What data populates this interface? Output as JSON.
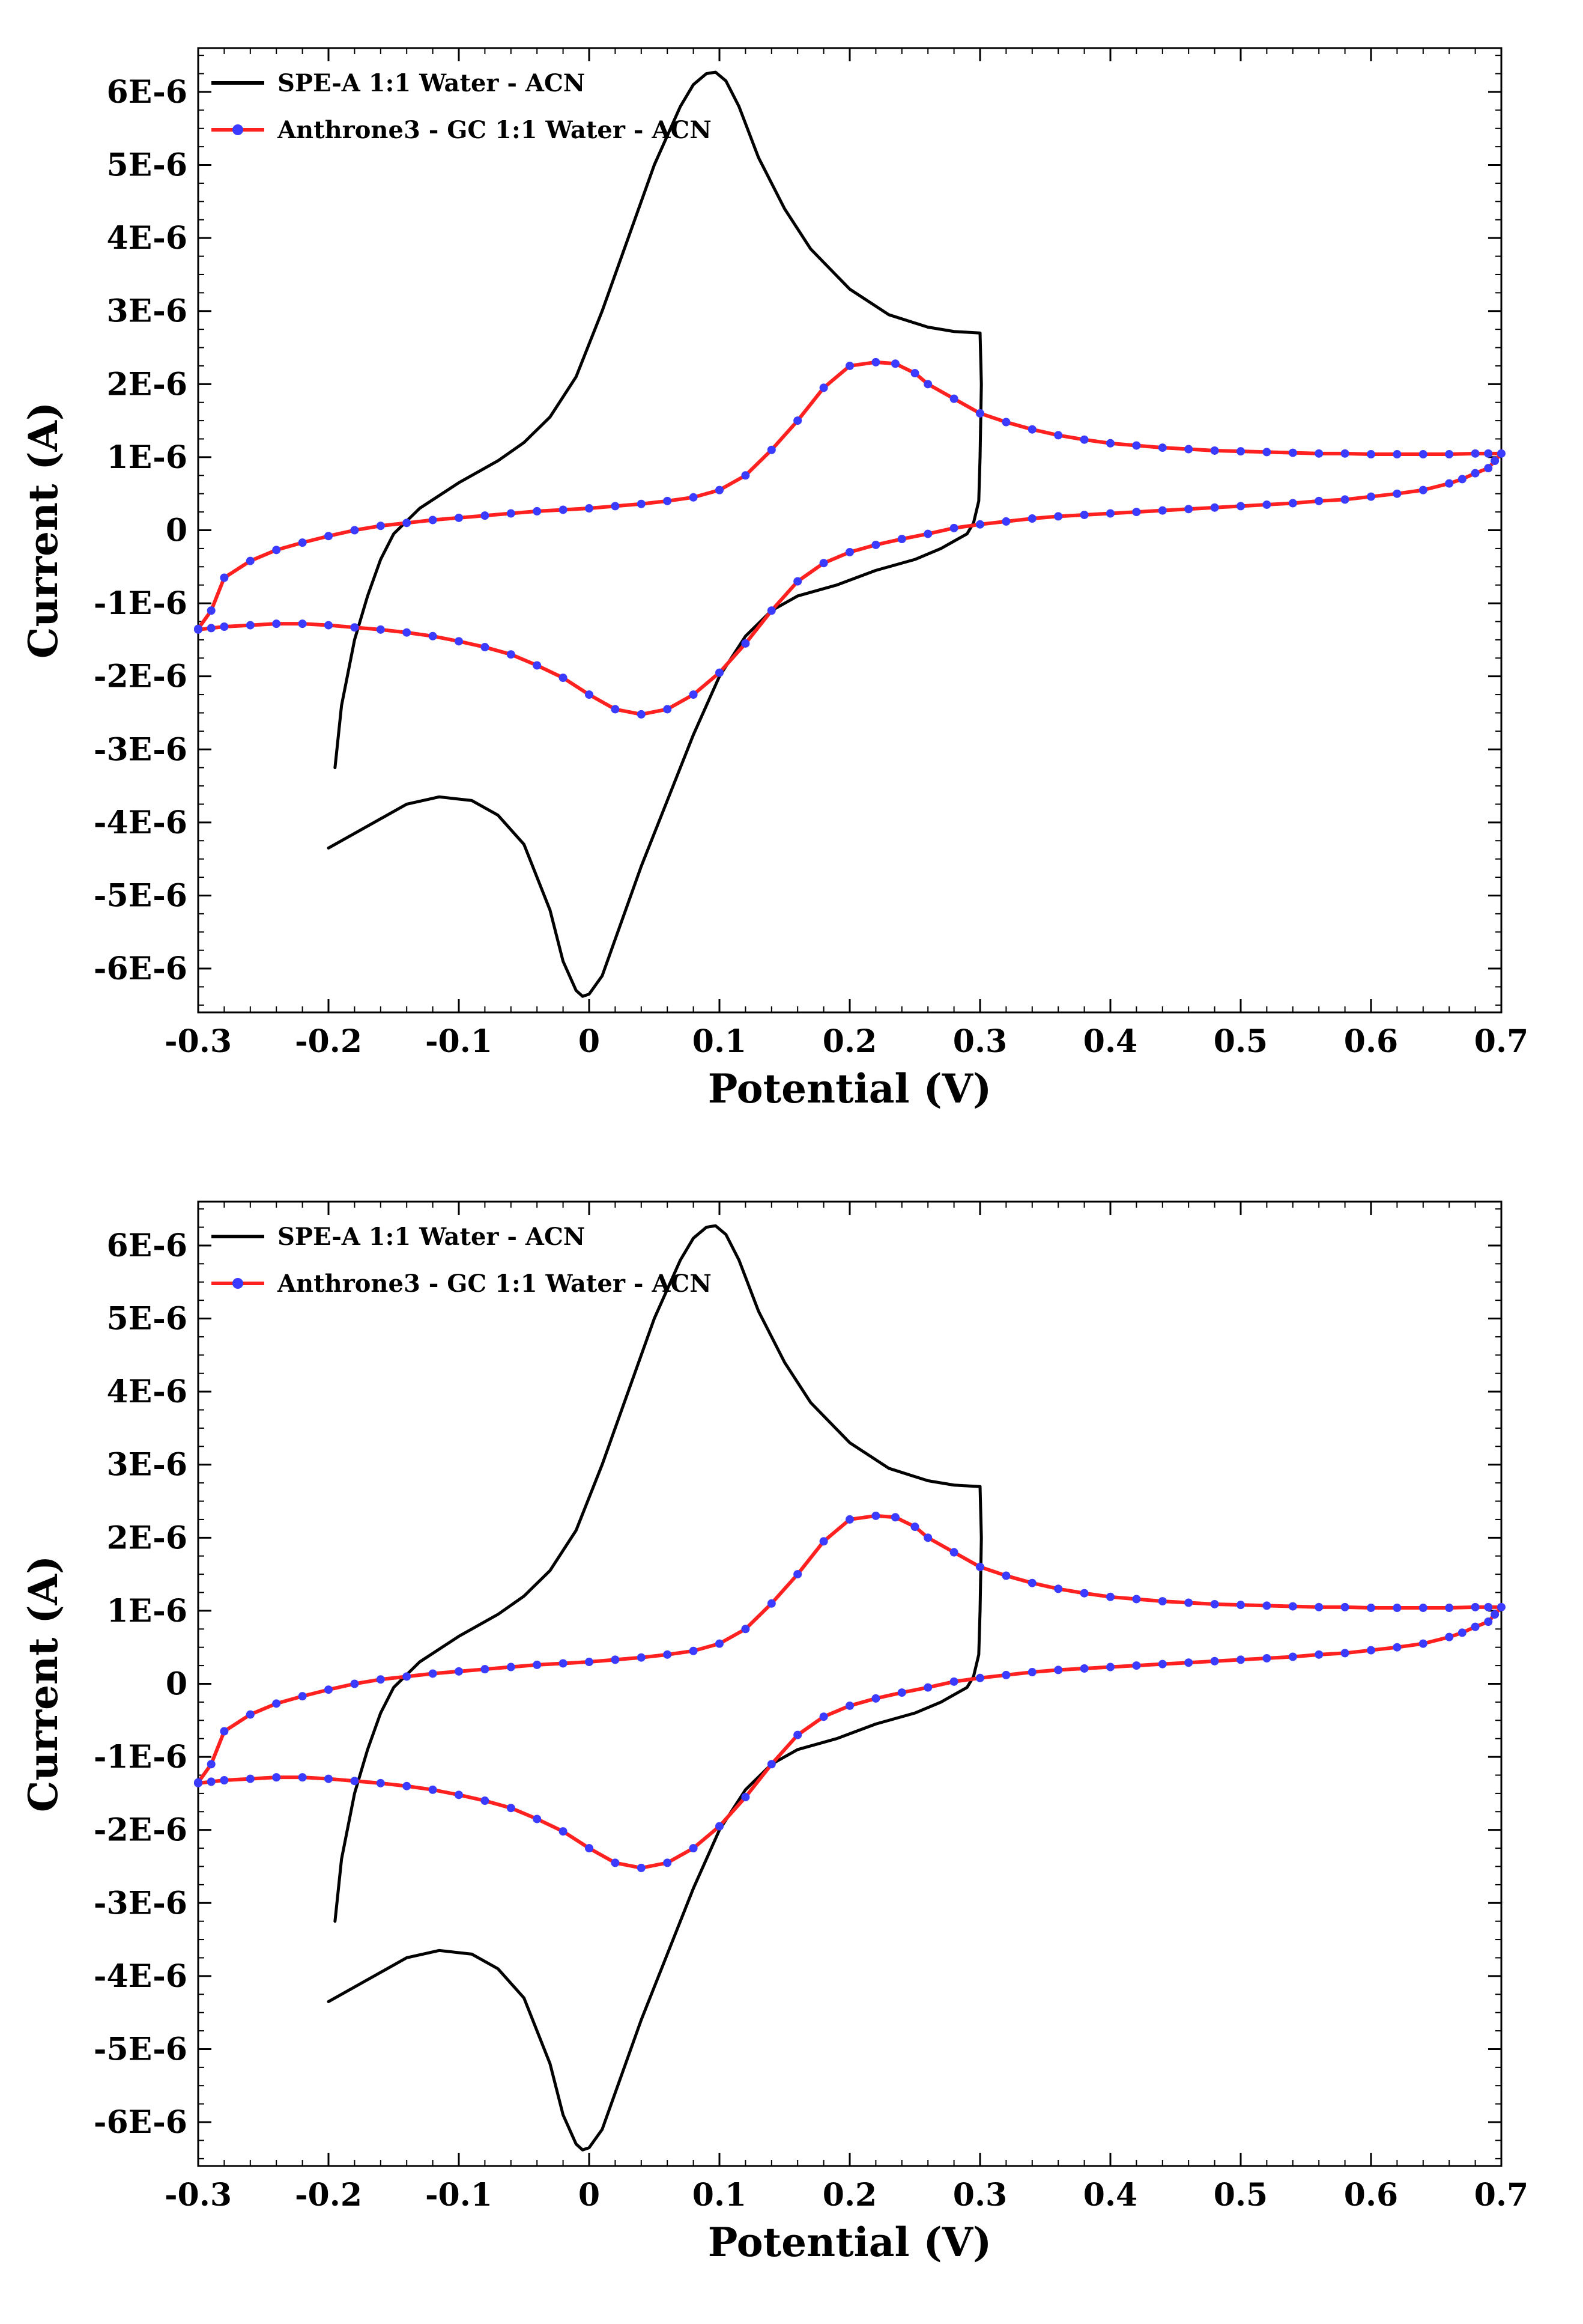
{
  "chart_data": [
    {
      "type": "line",
      "xlabel": "Potential (V)",
      "ylabel": "Current (A)",
      "xlim": [
        -0.3,
        0.7
      ],
      "ylim": [
        -6.6e-06,
        6.6e-06
      ],
      "x_ticks": [
        "-0.3",
        "-0.2",
        "-0.1",
        "0",
        "0.1",
        "0.2",
        "0.3",
        "0.4",
        "0.5",
        "0.6",
        "0.7"
      ],
      "y_ticks": [
        "6E-6",
        "5E-6",
        "4E-6",
        "3E-6",
        "2E-6",
        "1E-6",
        "0",
        "-1E-6",
        "-2E-6",
        "-3E-6",
        "-4E-6",
        "-5E-6",
        "-6E-6"
      ],
      "grid": false,
      "legend_position": "top-left",
      "series": [
        {
          "name": "SPE-A 1:1 Water - ACN",
          "color": "#000000",
          "marker": "none",
          "x": [
            -0.195,
            -0.19,
            -0.18,
            -0.17,
            -0.16,
            -0.15,
            -0.13,
            -0.1,
            -0.07,
            -0.05,
            -0.03,
            -0.01,
            0.01,
            0.03,
            0.05,
            0.07,
            0.08,
            0.09,
            0.097,
            0.105,
            0.115,
            0.13,
            0.15,
            0.17,
            0.2,
            0.23,
            0.26,
            0.28,
            0.3,
            0.301,
            0.3,
            0.299,
            0.295,
            0.29,
            0.28,
            0.27,
            0.25,
            0.22,
            0.19,
            0.16,
            0.14,
            0.12,
            0.1,
            0.08,
            0.06,
            0.04,
            0.02,
            0.01,
            0.0,
            -0.005,
            -0.01,
            -0.02,
            -0.03,
            -0.05,
            -0.07,
            -0.09,
            -0.115,
            -0.14,
            -0.17,
            -0.2
          ],
          "y": [
            -3.25e-06,
            -2.4e-06,
            -1.5e-06,
            -9e-07,
            -4e-07,
            -5e-08,
            3e-07,
            6.5e-07,
            9.5e-07,
            1.2e-06,
            1.55e-06,
            2.1e-06,
            3e-06,
            4e-06,
            5e-06,
            5.8e-06,
            6.1e-06,
            6.25e-06,
            6.27e-06,
            6.15e-06,
            5.8e-06,
            5.1e-06,
            4.4e-06,
            3.85e-06,
            3.3e-06,
            2.95e-06,
            2.78e-06,
            2.72e-06,
            2.7e-06,
            2e-06,
            1e-06,
            4e-07,
            1e-07,
            -5e-08,
            -1.5e-07,
            -2.5e-07,
            -4e-07,
            -5.5e-07,
            -7.5e-07,
            -9e-07,
            -1.1e-06,
            -1.45e-06,
            -2e-06,
            -2.8e-06,
            -3.7e-06,
            -4.6e-06,
            -5.6e-06,
            -6.1e-06,
            -6.35e-06,
            -6.38e-06,
            -6.3e-06,
            -5.9e-06,
            -5.2e-06,
            -4.3e-06,
            -3.9e-06,
            -3.7e-06,
            -3.65e-06,
            -3.75e-06,
            -4.05e-06,
            -4.35e-06
          ]
        },
        {
          "name": "Anthrone3 - GC 1:1 Water - ACN",
          "color": "#ff2020",
          "marker": "circle",
          "marker_color": "#3b3bff",
          "x": [
            -0.3,
            -0.29,
            -0.28,
            -0.26,
            -0.24,
            -0.22,
            -0.2,
            -0.18,
            -0.16,
            -0.14,
            -0.12,
            -0.1,
            -0.08,
            -0.06,
            -0.04,
            -0.02,
            0.0,
            0.02,
            0.04,
            0.06,
            0.08,
            0.1,
            0.12,
            0.14,
            0.16,
            0.18,
            0.2,
            0.22,
            0.235,
            0.25,
            0.26,
            0.28,
            0.3,
            0.32,
            0.34,
            0.36,
            0.38,
            0.4,
            0.42,
            0.44,
            0.46,
            0.48,
            0.5,
            0.52,
            0.54,
            0.56,
            0.58,
            0.6,
            0.62,
            0.64,
            0.66,
            0.68,
            0.69,
            0.7,
            0.695,
            0.69,
            0.68,
            0.67,
            0.66,
            0.64,
            0.62,
            0.6,
            0.58,
            0.56,
            0.54,
            0.52,
            0.5,
            0.48,
            0.46,
            0.44,
            0.42,
            0.4,
            0.38,
            0.36,
            0.34,
            0.32,
            0.3,
            0.28,
            0.26,
            0.24,
            0.22,
            0.2,
            0.18,
            0.16,
            0.14,
            0.12,
            0.1,
            0.08,
            0.06,
            0.04,
            0.02,
            0.0,
            -0.02,
            -0.04,
            -0.06,
            -0.08,
            -0.1,
            -0.12,
            -0.14,
            -0.16,
            -0.18,
            -0.2,
            -0.22,
            -0.24,
            -0.26,
            -0.28,
            -0.29,
            -0.3
          ],
          "y": [
            -1.35e-06,
            -1.1e-06,
            -6.5e-07,
            -4.2e-07,
            -2.7e-07,
            -1.7e-07,
            -8e-08,
            0.0,
            6e-08,
            1e-07,
            1.4e-07,
            1.7e-07,
            2e-07,
            2.3e-07,
            2.6e-07,
            2.8e-07,
            3e-07,
            3.3e-07,
            3.6e-07,
            4e-07,
            4.5e-07,
            5.5e-07,
            7.5e-07,
            1.1e-06,
            1.5e-06,
            1.95e-06,
            2.25e-06,
            2.3e-06,
            2.28e-06,
            2.15e-06,
            2e-06,
            1.8e-06,
            1.6e-06,
            1.48e-06,
            1.38e-06,
            1.3e-06,
            1.24e-06,
            1.19e-06,
            1.16e-06,
            1.13e-06,
            1.11e-06,
            1.09e-06,
            1.08e-06,
            1.07e-06,
            1.06e-06,
            1.05e-06,
            1.05e-06,
            1.04e-06,
            1.04e-06,
            1.04e-06,
            1.04e-06,
            1.05e-06,
            1.05e-06,
            1.05e-06,
            9.5e-07,
            8.5e-07,
            7.8e-07,
            7e-07,
            6.4e-07,
            5.5e-07,
            5e-07,
            4.6e-07,
            4.2e-07,
            4e-07,
            3.7e-07,
            3.5e-07,
            3.3e-07,
            3.1e-07,
            2.9e-07,
            2.7e-07,
            2.5e-07,
            2.3e-07,
            2.1e-07,
            1.9e-07,
            1.6e-07,
            1.2e-07,
            8e-08,
            3e-08,
            -5e-08,
            -1.2e-07,
            -2e-07,
            -3e-07,
            -4.5e-07,
            -7e-07,
            -1.1e-06,
            -1.55e-06,
            -1.95e-06,
            -2.25e-06,
            -2.45e-06,
            -2.52e-06,
            -2.45e-06,
            -2.25e-06,
            -2.02e-06,
            -1.85e-06,
            -1.7e-06,
            -1.6e-06,
            -1.52e-06,
            -1.45e-06,
            -1.4e-06,
            -1.36e-06,
            -1.33e-06,
            -1.3e-06,
            -1.28e-06,
            -1.28e-06,
            -1.3e-06,
            -1.32e-06,
            -1.34e-06,
            -1.36e-06
          ]
        }
      ]
    },
    {
      "type": "line",
      "xlabel": "Potential (V)",
      "ylabel": "Current (A)",
      "xlim": [
        -0.3,
        0.7
      ],
      "ylim": [
        -6.6e-06,
        6.6e-06
      ],
      "x_ticks": [
        "-0.3",
        "-0.2",
        "-0.1",
        "0",
        "0.1",
        "0.2",
        "0.3",
        "0.4",
        "0.5",
        "0.6",
        "0.7"
      ],
      "y_ticks": [
        "6E-6",
        "5E-6",
        "4E-6",
        "3E-6",
        "2E-6",
        "1E-6",
        "0",
        "-1E-6",
        "-2E-6",
        "-3E-6",
        "-4E-6",
        "-5E-6",
        "-6E-6"
      ],
      "grid": false,
      "legend_position": "top-left",
      "series": [
        {
          "name": "SPE-A 1:1 Water - ACN",
          "color": "#000000",
          "marker": "none",
          "x": [
            -0.195,
            -0.19,
            -0.18,
            -0.17,
            -0.16,
            -0.15,
            -0.13,
            -0.1,
            -0.07,
            -0.05,
            -0.03,
            -0.01,
            0.01,
            0.03,
            0.05,
            0.07,
            0.08,
            0.09,
            0.097,
            0.105,
            0.115,
            0.13,
            0.15,
            0.17,
            0.2,
            0.23,
            0.26,
            0.28,
            0.3,
            0.301,
            0.3,
            0.299,
            0.295,
            0.29,
            0.28,
            0.27,
            0.25,
            0.22,
            0.19,
            0.16,
            0.14,
            0.12,
            0.1,
            0.08,
            0.06,
            0.04,
            0.02,
            0.01,
            0.0,
            -0.005,
            -0.01,
            -0.02,
            -0.03,
            -0.05,
            -0.07,
            -0.09,
            -0.115,
            -0.14,
            -0.17,
            -0.2
          ],
          "y": [
            -3.25e-06,
            -2.4e-06,
            -1.5e-06,
            -9e-07,
            -4e-07,
            -5e-08,
            3e-07,
            6.5e-07,
            9.5e-07,
            1.2e-06,
            1.55e-06,
            2.1e-06,
            3e-06,
            4e-06,
            5e-06,
            5.8e-06,
            6.1e-06,
            6.25e-06,
            6.27e-06,
            6.15e-06,
            5.8e-06,
            5.1e-06,
            4.4e-06,
            3.85e-06,
            3.3e-06,
            2.95e-06,
            2.78e-06,
            2.72e-06,
            2.7e-06,
            2e-06,
            1e-06,
            4e-07,
            1e-07,
            -5e-08,
            -1.5e-07,
            -2.5e-07,
            -4e-07,
            -5.5e-07,
            -7.5e-07,
            -9e-07,
            -1.1e-06,
            -1.45e-06,
            -2e-06,
            -2.8e-06,
            -3.7e-06,
            -4.6e-06,
            -5.6e-06,
            -6.1e-06,
            -6.35e-06,
            -6.38e-06,
            -6.3e-06,
            -5.9e-06,
            -5.2e-06,
            -4.3e-06,
            -3.9e-06,
            -3.7e-06,
            -3.65e-06,
            -3.75e-06,
            -4.05e-06,
            -4.35e-06
          ]
        },
        {
          "name": "Anthrone3 - GC 1:1 Water - ACN",
          "color": "#ff2020",
          "marker": "circle",
          "marker_color": "#3b3bff",
          "x": [
            -0.3,
            -0.29,
            -0.28,
            -0.26,
            -0.24,
            -0.22,
            -0.2,
            -0.18,
            -0.16,
            -0.14,
            -0.12,
            -0.1,
            -0.08,
            -0.06,
            -0.04,
            -0.02,
            0.0,
            0.02,
            0.04,
            0.06,
            0.08,
            0.1,
            0.12,
            0.14,
            0.16,
            0.18,
            0.2,
            0.22,
            0.235,
            0.25,
            0.26,
            0.28,
            0.3,
            0.32,
            0.34,
            0.36,
            0.38,
            0.4,
            0.42,
            0.44,
            0.46,
            0.48,
            0.5,
            0.52,
            0.54,
            0.56,
            0.58,
            0.6,
            0.62,
            0.64,
            0.66,
            0.68,
            0.69,
            0.7,
            0.695,
            0.69,
            0.68,
            0.67,
            0.66,
            0.64,
            0.62,
            0.6,
            0.58,
            0.56,
            0.54,
            0.52,
            0.5,
            0.48,
            0.46,
            0.44,
            0.42,
            0.4,
            0.38,
            0.36,
            0.34,
            0.32,
            0.3,
            0.28,
            0.26,
            0.24,
            0.22,
            0.2,
            0.18,
            0.16,
            0.14,
            0.12,
            0.1,
            0.08,
            0.06,
            0.04,
            0.02,
            0.0,
            -0.02,
            -0.04,
            -0.06,
            -0.08,
            -0.1,
            -0.12,
            -0.14,
            -0.16,
            -0.18,
            -0.2,
            -0.22,
            -0.24,
            -0.26,
            -0.28,
            -0.29,
            -0.3
          ],
          "y": [
            -1.35e-06,
            -1.1e-06,
            -6.5e-07,
            -4.2e-07,
            -2.7e-07,
            -1.7e-07,
            -8e-08,
            0.0,
            6e-08,
            1e-07,
            1.4e-07,
            1.7e-07,
            2e-07,
            2.3e-07,
            2.6e-07,
            2.8e-07,
            3e-07,
            3.3e-07,
            3.6e-07,
            4e-07,
            4.5e-07,
            5.5e-07,
            7.5e-07,
            1.1e-06,
            1.5e-06,
            1.95e-06,
            2.25e-06,
            2.3e-06,
            2.28e-06,
            2.15e-06,
            2e-06,
            1.8e-06,
            1.6e-06,
            1.48e-06,
            1.38e-06,
            1.3e-06,
            1.24e-06,
            1.19e-06,
            1.16e-06,
            1.13e-06,
            1.11e-06,
            1.09e-06,
            1.08e-06,
            1.07e-06,
            1.06e-06,
            1.05e-06,
            1.05e-06,
            1.04e-06,
            1.04e-06,
            1.04e-06,
            1.04e-06,
            1.05e-06,
            1.05e-06,
            1.05e-06,
            9.5e-07,
            8.5e-07,
            7.8e-07,
            7e-07,
            6.4e-07,
            5.5e-07,
            5e-07,
            4.6e-07,
            4.2e-07,
            4e-07,
            3.7e-07,
            3.5e-07,
            3.3e-07,
            3.1e-07,
            2.9e-07,
            2.7e-07,
            2.5e-07,
            2.3e-07,
            2.1e-07,
            1.9e-07,
            1.6e-07,
            1.2e-07,
            8e-08,
            3e-08,
            -5e-08,
            -1.2e-07,
            -2e-07,
            -3e-07,
            -4.5e-07,
            -7e-07,
            -1.1e-06,
            -1.55e-06,
            -1.95e-06,
            -2.25e-06,
            -2.45e-06,
            -2.52e-06,
            -2.45e-06,
            -2.25e-06,
            -2.02e-06,
            -1.85e-06,
            -1.7e-06,
            -1.6e-06,
            -1.52e-06,
            -1.45e-06,
            -1.4e-06,
            -1.36e-06,
            -1.33e-06,
            -1.3e-06,
            -1.28e-06,
            -1.28e-06,
            -1.3e-06,
            -1.32e-06,
            -1.34e-06,
            -1.36e-06
          ]
        }
      ]
    }
  ]
}
